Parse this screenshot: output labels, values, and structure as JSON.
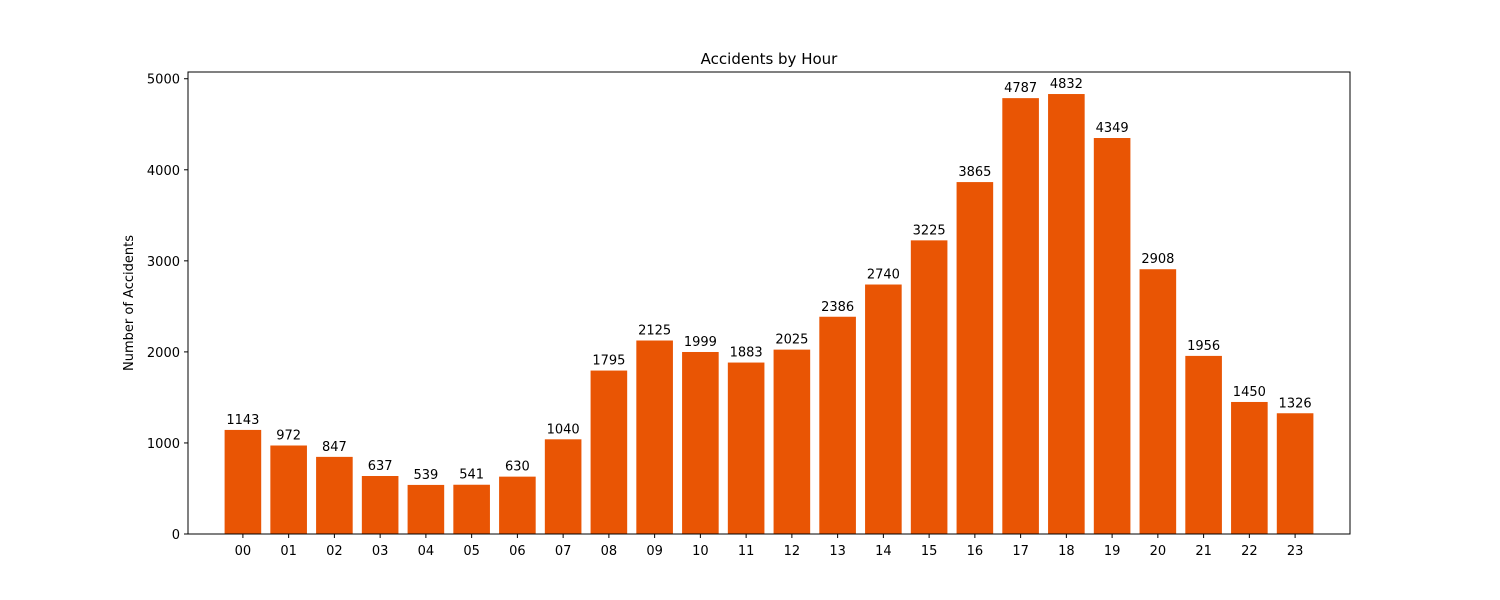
{
  "chart_data": {
    "type": "bar",
    "title": "Accidents by Hour",
    "xlabel": "",
    "ylabel": "Number of Accidents",
    "categories": [
      "00",
      "01",
      "02",
      "03",
      "04",
      "05",
      "06",
      "07",
      "08",
      "09",
      "10",
      "11",
      "12",
      "13",
      "14",
      "15",
      "16",
      "17",
      "18",
      "19",
      "20",
      "21",
      "22",
      "23"
    ],
    "values": [
      1143,
      972,
      847,
      637,
      539,
      541,
      630,
      1040,
      1795,
      2125,
      1999,
      1883,
      2025,
      2386,
      2740,
      3225,
      3865,
      4787,
      4832,
      4349,
      2908,
      1956,
      1450,
      1326
    ],
    "ylim": [
      0,
      5074
    ],
    "yticks": [
      0,
      1000,
      2000,
      3000,
      4000,
      5000
    ],
    "bar_color": "#e95504",
    "grid": false,
    "legend": "none"
  }
}
